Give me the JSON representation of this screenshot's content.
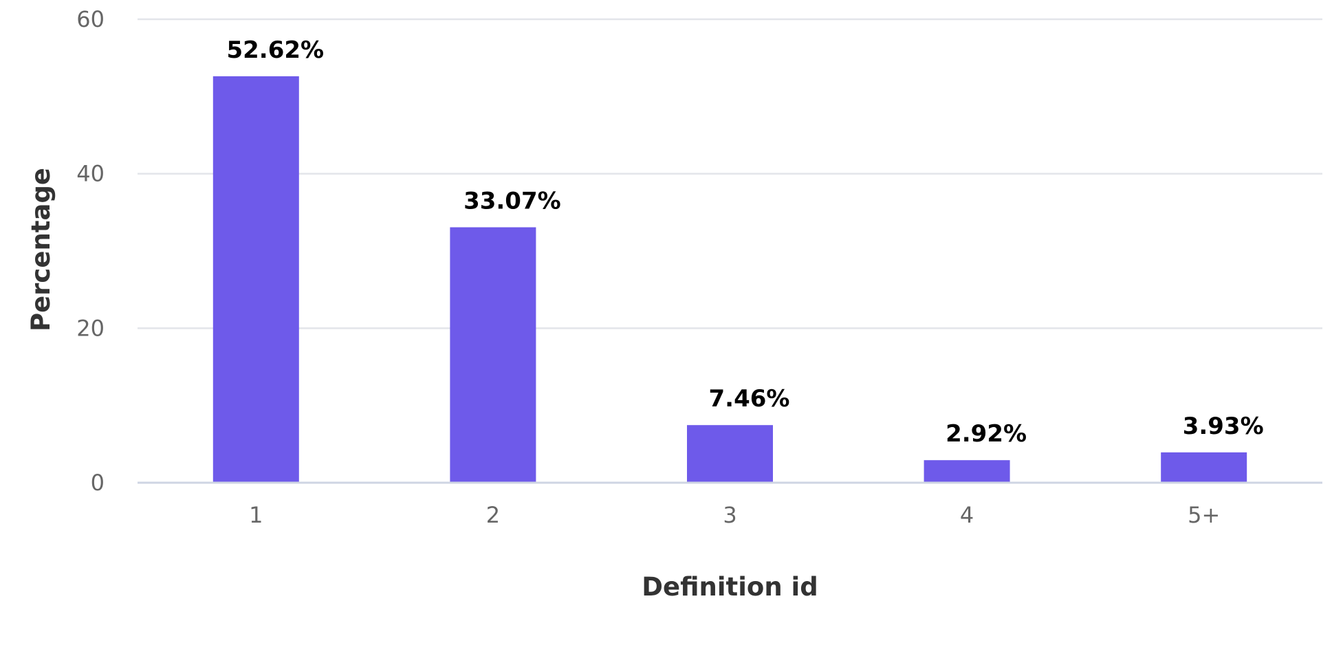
{
  "chart_data": {
    "type": "bar",
    "categories": [
      "1",
      "2",
      "3",
      "4",
      "5+"
    ],
    "values": [
      52.62,
      33.07,
      7.46,
      2.92,
      3.93
    ],
    "data_labels": [
      "52.62%",
      "33.07%",
      "7.46%",
      "2.92%",
      "3.93%"
    ],
    "title": "",
    "xlabel": "Definition id",
    "ylabel": "Percentage",
    "ylim": [
      0,
      60
    ],
    "yticks": [
      0,
      20,
      40,
      60
    ],
    "grid": true,
    "legend": "none",
    "bar_color": "#6e5aea"
  }
}
